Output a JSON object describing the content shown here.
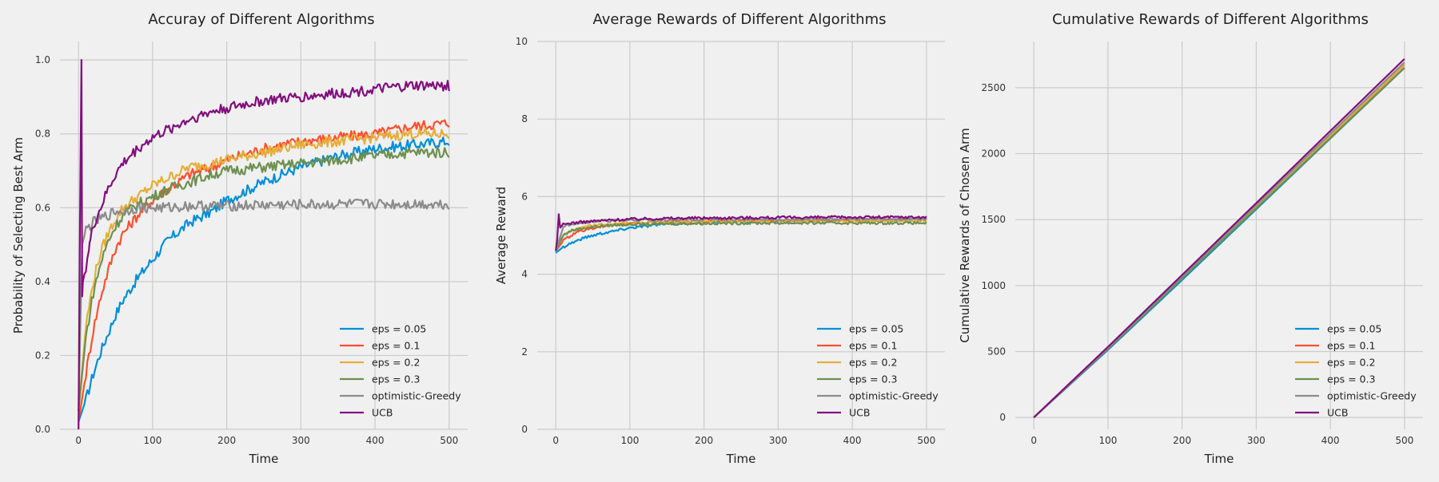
{
  "chart_data": [
    {
      "type": "line",
      "title": "Accuray of Different Algorithms",
      "xlabel": "Time",
      "ylabel": "Probability of Selecting Best Arm",
      "xlim": [
        -25,
        525
      ],
      "ylim": [
        0,
        1.05
      ],
      "xticks": [
        0,
        100,
        200,
        300,
        400,
        500
      ],
      "xtick_labels": [
        "0",
        "100",
        "200",
        "300",
        "400",
        "500"
      ],
      "yticks": [
        0,
        0.2,
        0.4,
        0.6,
        0.8,
        1.0
      ],
      "ytick_labels": [
        "0.0",
        "0.2",
        "0.4",
        "0.6",
        "0.8",
        "1.0"
      ],
      "grid": true,
      "legend": "lower-right",
      "series": [
        {
          "name": "eps = 0.05",
          "color": "#008fd5",
          "x": [
            0,
            10,
            20,
            30,
            40,
            50,
            60,
            80,
            100,
            120,
            150,
            180,
            200,
            250,
            300,
            350,
            400,
            450,
            500
          ],
          "y": [
            0.02,
            0.08,
            0.15,
            0.21,
            0.26,
            0.31,
            0.35,
            0.41,
            0.46,
            0.51,
            0.56,
            0.59,
            0.62,
            0.67,
            0.71,
            0.74,
            0.76,
            0.77,
            0.78
          ]
        },
        {
          "name": "eps = 0.1",
          "color": "#fc4f30",
          "x": [
            0,
            10,
            20,
            30,
            40,
            50,
            60,
            80,
            100,
            120,
            150,
            180,
            200,
            250,
            300,
            350,
            400,
            450,
            500
          ],
          "y": [
            0.02,
            0.15,
            0.27,
            0.36,
            0.43,
            0.49,
            0.53,
            0.58,
            0.62,
            0.65,
            0.69,
            0.71,
            0.73,
            0.76,
            0.78,
            0.79,
            0.8,
            0.82,
            0.83
          ]
        },
        {
          "name": "eps = 0.2",
          "color": "#e5ae38",
          "x": [
            0,
            10,
            20,
            30,
            40,
            50,
            60,
            80,
            100,
            120,
            150,
            180,
            200,
            250,
            300,
            350,
            400,
            450,
            500
          ],
          "y": [
            0.05,
            0.28,
            0.4,
            0.48,
            0.53,
            0.57,
            0.6,
            0.63,
            0.66,
            0.68,
            0.71,
            0.72,
            0.73,
            0.75,
            0.77,
            0.78,
            0.79,
            0.8,
            0.8
          ]
        },
        {
          "name": "eps = 0.3",
          "color": "#6d904f",
          "x": [
            0,
            10,
            20,
            30,
            40,
            50,
            60,
            80,
            100,
            120,
            150,
            180,
            200,
            250,
            300,
            350,
            400,
            450,
            500
          ],
          "y": [
            0.05,
            0.25,
            0.37,
            0.45,
            0.51,
            0.55,
            0.58,
            0.61,
            0.63,
            0.65,
            0.67,
            0.69,
            0.7,
            0.71,
            0.72,
            0.73,
            0.74,
            0.75,
            0.75
          ]
        },
        {
          "name": "optimistic-Greedy",
          "color": "#8b8b8b",
          "x": [
            0,
            5,
            10,
            20,
            30,
            40,
            50,
            60,
            80,
            100,
            120,
            150,
            200,
            250,
            300,
            350,
            400,
            450,
            500
          ],
          "y": [
            0.05,
            0.5,
            0.54,
            0.56,
            0.57,
            0.58,
            0.59,
            0.59,
            0.6,
            0.6,
            0.6,
            0.605,
            0.605,
            0.607,
            0.608,
            0.609,
            0.61,
            0.61,
            0.61
          ]
        },
        {
          "name": "UCB",
          "color": "#810f7c",
          "x": [
            0,
            2,
            4,
            5,
            6,
            8,
            10,
            15,
            20,
            30,
            40,
            50,
            60,
            80,
            100,
            120,
            150,
            180,
            200,
            250,
            300,
            350,
            400,
            450,
            500
          ],
          "y": [
            0.0,
            0.55,
            1.0,
            0.36,
            0.4,
            0.42,
            0.44,
            0.5,
            0.55,
            0.6,
            0.65,
            0.69,
            0.72,
            0.76,
            0.79,
            0.81,
            0.84,
            0.86,
            0.87,
            0.89,
            0.9,
            0.91,
            0.92,
            0.93,
            0.93
          ]
        }
      ]
    },
    {
      "type": "line",
      "title": "Average Rewards of Different Algorithms",
      "xlabel": "Time",
      "ylabel": "Average Reward",
      "xlim": [
        -25,
        525
      ],
      "ylim": [
        0,
        10
      ],
      "xticks": [
        0,
        100,
        200,
        300,
        400,
        500
      ],
      "xtick_labels": [
        "0",
        "100",
        "200",
        "300",
        "400",
        "500"
      ],
      "yticks": [
        0,
        2,
        4,
        6,
        8,
        10
      ],
      "ytick_labels": [
        "0",
        "2",
        "4",
        "6",
        "8",
        "10"
      ],
      "grid": true,
      "legend": "lower-right",
      "series": [
        {
          "name": "eps = 0.05",
          "color": "#008fd5",
          "x": [
            0,
            10,
            20,
            40,
            60,
            80,
            100,
            150,
            200,
            300,
            400,
            500
          ],
          "y": [
            4.55,
            4.7,
            4.8,
            4.95,
            5.05,
            5.12,
            5.2,
            5.3,
            5.35,
            5.38,
            5.4,
            5.4
          ]
        },
        {
          "name": "eps = 0.1",
          "color": "#fc4f30",
          "x": [
            0,
            10,
            20,
            40,
            60,
            80,
            100,
            150,
            200,
            300,
            400,
            500
          ],
          "y": [
            4.6,
            4.85,
            5.0,
            5.15,
            5.22,
            5.27,
            5.3,
            5.35,
            5.37,
            5.38,
            5.4,
            5.42
          ]
        },
        {
          "name": "eps = 0.2",
          "color": "#e5ae38",
          "x": [
            0,
            10,
            20,
            40,
            60,
            80,
            100,
            150,
            200,
            300,
            400,
            500
          ],
          "y": [
            4.6,
            5.0,
            5.12,
            5.22,
            5.27,
            5.3,
            5.32,
            5.35,
            5.36,
            5.37,
            5.38,
            5.38
          ]
        },
        {
          "name": "eps = 0.3",
          "color": "#6d904f",
          "x": [
            0,
            10,
            20,
            40,
            60,
            80,
            100,
            150,
            200,
            300,
            400,
            500
          ],
          "y": [
            4.6,
            5.0,
            5.12,
            5.2,
            5.24,
            5.27,
            5.28,
            5.3,
            5.31,
            5.32,
            5.32,
            5.32
          ]
        },
        {
          "name": "optimistic-Greedy",
          "color": "#8b8b8b",
          "x": [
            0,
            10,
            20,
            40,
            60,
            80,
            100,
            150,
            200,
            300,
            400,
            500
          ],
          "y": [
            4.6,
            5.2,
            5.3,
            5.35,
            5.37,
            5.38,
            5.4,
            5.4,
            5.41,
            5.41,
            5.42,
            5.42
          ]
        },
        {
          "name": "UCB",
          "color": "#810f7c",
          "x": [
            0,
            2,
            4,
            6,
            10,
            20,
            40,
            60,
            80,
            100,
            150,
            200,
            300,
            400,
            500
          ],
          "y": [
            4.6,
            4.9,
            5.55,
            5.2,
            5.28,
            5.32,
            5.35,
            5.38,
            5.4,
            5.42,
            5.44,
            5.45,
            5.46,
            5.47,
            5.47
          ]
        }
      ]
    },
    {
      "type": "line",
      "title": "Cumulative Rewards of Different Algorithms",
      "xlabel": "Time",
      "ylabel": "Cumulative Rewards of Chosen Arm",
      "xlim": [
        -25,
        525
      ],
      "ylim": [
        -90,
        2850
      ],
      "xticks": [
        0,
        100,
        200,
        300,
        400,
        500
      ],
      "xtick_labels": [
        "0",
        "100",
        "200",
        "300",
        "400",
        "500"
      ],
      "yticks": [
        0,
        500,
        1000,
        1500,
        2000,
        2500
      ],
      "ytick_labels": [
        "0",
        "500",
        "1000",
        "1500",
        "2000",
        "2500"
      ],
      "grid": true,
      "legend": "lower-right",
      "series": [
        {
          "name": "eps = 0.05",
          "color": "#008fd5",
          "x": [
            0,
            100,
            200,
            300,
            400,
            500
          ],
          "y": [
            0,
            512,
            1042,
            1578,
            2115,
            2650
          ]
        },
        {
          "name": "eps = 0.1",
          "color": "#fc4f30",
          "x": [
            0,
            100,
            200,
            300,
            400,
            500
          ],
          "y": [
            0,
            520,
            1055,
            1593,
            2133,
            2672
          ]
        },
        {
          "name": "eps = 0.2",
          "color": "#e5ae38",
          "x": [
            0,
            100,
            200,
            300,
            400,
            500
          ],
          "y": [
            0,
            525,
            1060,
            1598,
            2136,
            2675
          ]
        },
        {
          "name": "eps = 0.3",
          "color": "#6d904f",
          "x": [
            0,
            100,
            200,
            300,
            400,
            500
          ],
          "y": [
            0,
            522,
            1054,
            1586,
            2118,
            2650
          ]
        },
        {
          "name": "optimistic-Greedy",
          "color": "#8b8b8b",
          "x": [
            0,
            100,
            200,
            300,
            400,
            500
          ],
          "y": [
            0,
            528,
            1068,
            1609,
            2150,
            2692
          ]
        },
        {
          "name": "UCB",
          "color": "#810f7c",
          "x": [
            0,
            100,
            200,
            300,
            400,
            500
          ],
          "y": [
            0,
            535,
            1080,
            1625,
            2172,
            2718
          ]
        }
      ]
    }
  ]
}
